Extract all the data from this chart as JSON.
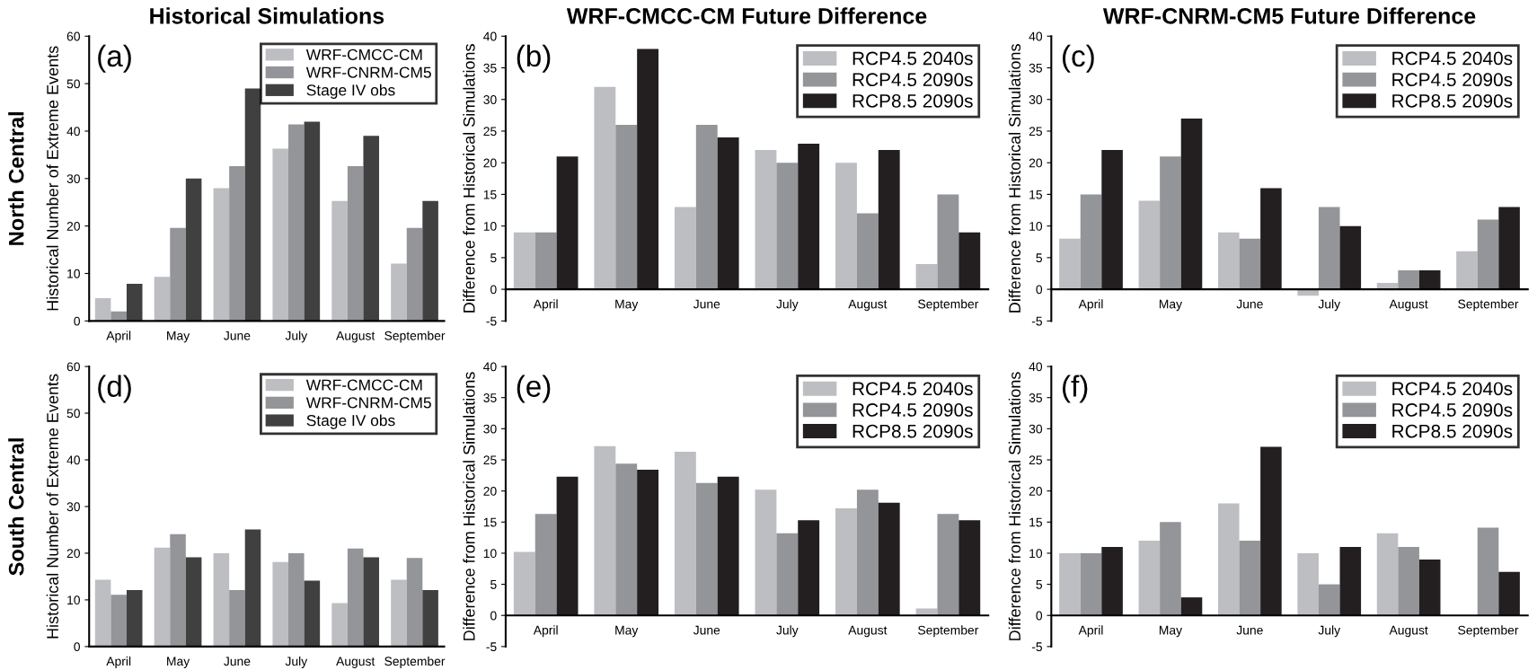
{
  "chart_data": [
    {
      "type": "bar",
      "title": "Historical Simulations",
      "ylabel": "Historical Number of Extreme Events",
      "annotations": [
        "(a)",
        "North Central"
      ],
      "categories": [
        "April",
        "May",
        "June",
        "July",
        "August",
        "September"
      ],
      "ylim": [
        0,
        60
      ],
      "yticks": [
        0,
        10,
        20,
        30,
        40,
        50,
        60
      ],
      "legend": "top right",
      "grid": false,
      "series": [
        {
          "name": "WRF-CMCC-CM",
          "color": "#bdbec2",
          "values": [
            4.8,
            9.3,
            28,
            36.3,
            25.3,
            12.1
          ]
        },
        {
          "name": "WRF-CNRM-CM5",
          "color": "#939598",
          "values": [
            2,
            19.6,
            32.6,
            41.4,
            32.6,
            19.6
          ]
        },
        {
          "name": "Stage IV obs",
          "color": "#404040",
          "values": [
            7.8,
            30,
            49,
            42,
            39,
            25.3
          ]
        }
      ]
    },
    {
      "type": "bar",
      "title": "WRF-CMCC-CM Future Difference",
      "ylabel": "Difference from Historical Simulations",
      "annotations": [
        "(b)"
      ],
      "categories": [
        "April",
        "May",
        "June",
        "July",
        "August",
        "September"
      ],
      "ylim": [
        -5,
        40
      ],
      "yticks": [
        -5,
        0,
        5,
        10,
        15,
        20,
        25,
        30,
        35,
        40
      ],
      "legend": "top right",
      "grid": false,
      "series": [
        {
          "name": "RCP4.5 2040s",
          "color": "#bdbec2",
          "values": [
            9,
            32,
            13,
            22,
            20,
            4
          ]
        },
        {
          "name": "RCP4.5 2090s",
          "color": "#939598",
          "values": [
            9,
            26,
            26,
            20,
            12,
            15
          ]
        },
        {
          "name": "RCP8.5 2090s",
          "color": "#231f20",
          "values": [
            21,
            38,
            24,
            23,
            22,
            9
          ]
        }
      ]
    },
    {
      "type": "bar",
      "title": "WRF-CNRM-CM5 Future Difference",
      "ylabel": "Difference from Historical Simulations",
      "annotations": [
        "(c)"
      ],
      "categories": [
        "April",
        "May",
        "June",
        "July",
        "August",
        "September"
      ],
      "ylim": [
        -5,
        40
      ],
      "yticks": [
        -5,
        0,
        5,
        10,
        15,
        20,
        25,
        30,
        35,
        40
      ],
      "legend": "top right",
      "grid": false,
      "series": [
        {
          "name": "RCP4.5 2040s",
          "color": "#bdbec2",
          "values": [
            8,
            14,
            9,
            -1,
            1,
            6
          ]
        },
        {
          "name": "RCP4.5 2090s",
          "color": "#939598",
          "values": [
            15,
            21,
            8,
            13,
            3,
            11
          ]
        },
        {
          "name": "RCP8.5 2090s",
          "color": "#231f20",
          "values": [
            22,
            27,
            16,
            10,
            3,
            13
          ]
        }
      ]
    },
    {
      "type": "bar",
      "ylabel": "Historical Number of Extreme Events",
      "annotations": [
        "(d)",
        "South Central"
      ],
      "categories": [
        "April",
        "May",
        "June",
        "July",
        "August",
        "September"
      ],
      "ylim": [
        0,
        60
      ],
      "yticks": [
        0,
        10,
        20,
        30,
        40,
        50,
        60
      ],
      "legend": "top right",
      "grid": false,
      "series": [
        {
          "name": "WRF-CMCC-CM",
          "color": "#bdbec2",
          "values": [
            14.3,
            21.2,
            20,
            18.1,
            9.3,
            14.3
          ]
        },
        {
          "name": "WRF-CNRM-CM5",
          "color": "#939598",
          "values": [
            11.1,
            24.1,
            12.1,
            20,
            21,
            19
          ]
        },
        {
          "name": "Stage IV obs",
          "color": "#404040",
          "values": [
            12.1,
            19.1,
            25.1,
            14.1,
            19.1,
            12.1
          ]
        }
      ]
    },
    {
      "type": "bar",
      "ylabel": "Difference from Historical Simulations",
      "annotations": [
        "(e)"
      ],
      "categories": [
        "April",
        "May",
        "June",
        "July",
        "August",
        "September"
      ],
      "ylim": [
        -5,
        40
      ],
      "yticks": [
        -5,
        0,
        5,
        10,
        15,
        20,
        25,
        30,
        35,
        40
      ],
      "legend": "top right",
      "grid": false,
      "series": [
        {
          "name": "RCP4.5 2040s",
          "color": "#bdbec2",
          "values": [
            10.2,
            27.2,
            26.3,
            20.2,
            17.2,
            1.1
          ]
        },
        {
          "name": "RCP4.5 2090s",
          "color": "#939598",
          "values": [
            16.3,
            24.4,
            21.3,
            13.2,
            20.2,
            16.3
          ]
        },
        {
          "name": "RCP8.5 2090s",
          "color": "#231f20",
          "values": [
            22.3,
            23.4,
            22.3,
            15.3,
            18.1,
            15.3
          ]
        }
      ]
    },
    {
      "type": "bar",
      "ylabel": "Difference from Historical Simulations",
      "annotations": [
        "(f)"
      ],
      "categories": [
        "April",
        "May",
        "June",
        "July",
        "August",
        "September"
      ],
      "ylim": [
        -5,
        40
      ],
      "yticks": [
        -5,
        0,
        5,
        10,
        15,
        20,
        25,
        30,
        35,
        40
      ],
      "legend": "top right",
      "grid": false,
      "series": [
        {
          "name": "RCP4.5 2040s",
          "color": "#bdbec2",
          "values": [
            10,
            12,
            18,
            10,
            13.2,
            0
          ]
        },
        {
          "name": "RCP4.5 2090s",
          "color": "#939598",
          "values": [
            10,
            15,
            12,
            5,
            11,
            14.1
          ]
        },
        {
          "name": "RCP8.5 2090s",
          "color": "#231f20",
          "values": [
            11,
            2.9,
            27.1,
            11,
            9,
            7
          ]
        }
      ]
    }
  ]
}
